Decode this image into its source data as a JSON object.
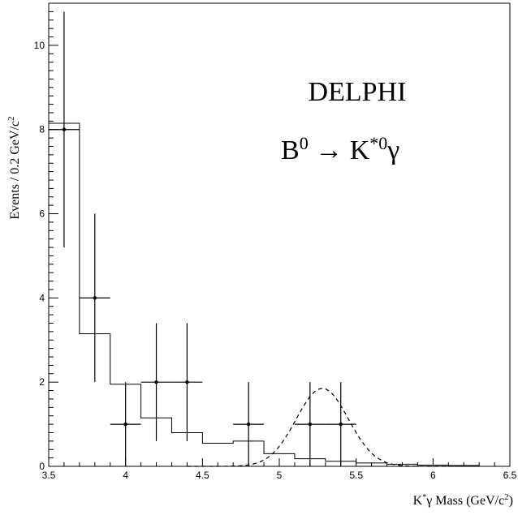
{
  "chart_data": {
    "type": "histogram",
    "xlabel_parts": [
      "K",
      "*",
      "γ Mass (GeV/c",
      "2",
      ")"
    ],
    "ylabel_parts": [
      "Events / 0.2 GeV/c",
      "2"
    ],
    "annotation": {
      "line1": "DELPHI",
      "line2_parts": [
        "B",
        "0",
        " → K",
        "*0",
        "γ"
      ]
    },
    "xlim": [
      3.5,
      6.5
    ],
    "ylim": [
      0,
      11
    ],
    "xticks": [
      {
        "value": 3.5,
        "label": "3.5"
      },
      {
        "value": 4,
        "label": "4"
      },
      {
        "value": 4.5,
        "label": "4.5"
      },
      {
        "value": 5,
        "label": "5"
      },
      {
        "value": 5.5,
        "label": "5.5"
      },
      {
        "value": 6,
        "label": "6"
      },
      {
        "value": 6.5,
        "label": "6.5"
      }
    ],
    "yticks": [
      {
        "value": 0,
        "label": "0"
      },
      {
        "value": 2,
        "label": "2"
      },
      {
        "value": 4,
        "label": "4"
      },
      {
        "value": 6,
        "label": "6"
      },
      {
        "value": 8,
        "label": "8"
      },
      {
        "value": 10,
        "label": "10"
      }
    ],
    "data_points": [
      {
        "x": 3.6,
        "y": 8,
        "xerr": 0.1,
        "yerr_low": 2.8,
        "yerr_high": 2.8
      },
      {
        "x": 3.8,
        "y": 4,
        "xerr": 0.1,
        "yerr_low": 2.0,
        "yerr_high": 2.0
      },
      {
        "x": 4.0,
        "y": 1,
        "xerr": 0.1,
        "yerr_low": 1.0,
        "yerr_high": 1.0
      },
      {
        "x": 4.2,
        "y": 2,
        "xerr": 0.1,
        "yerr_low": 1.4,
        "yerr_high": 1.4
      },
      {
        "x": 4.4,
        "y": 2,
        "xerr": 0.1,
        "yerr_low": 1.4,
        "yerr_high": 1.4
      },
      {
        "x": 4.8,
        "y": 1,
        "xerr": 0.1,
        "yerr_low": 1.0,
        "yerr_high": 1.0
      },
      {
        "x": 5.2,
        "y": 1,
        "xerr": 0.1,
        "yerr_low": 1.0,
        "yerr_high": 1.0
      },
      {
        "x": 5.4,
        "y": 1,
        "xerr": 0.1,
        "yerr_low": 1.0,
        "yerr_high": 1.0
      }
    ],
    "background_histogram": {
      "bin_edges": [
        3.5,
        3.7,
        3.9,
        4.1,
        4.3,
        4.5,
        4.7,
        4.9,
        5.1,
        5.3,
        5.5,
        5.7,
        5.9,
        6.1,
        6.3,
        6.5
      ],
      "values": [
        8.15,
        3.15,
        1.95,
        1.15,
        0.8,
        0.55,
        0.6,
        0.3,
        0.18,
        0.12,
        0.08,
        0.05,
        0.03,
        0.02,
        0.0
      ]
    },
    "signal_curve": {
      "style": "dashed",
      "mean": 5.28,
      "sigma": 0.17,
      "amplitude": 1.85
    },
    "grid": false,
    "legend": "none"
  }
}
